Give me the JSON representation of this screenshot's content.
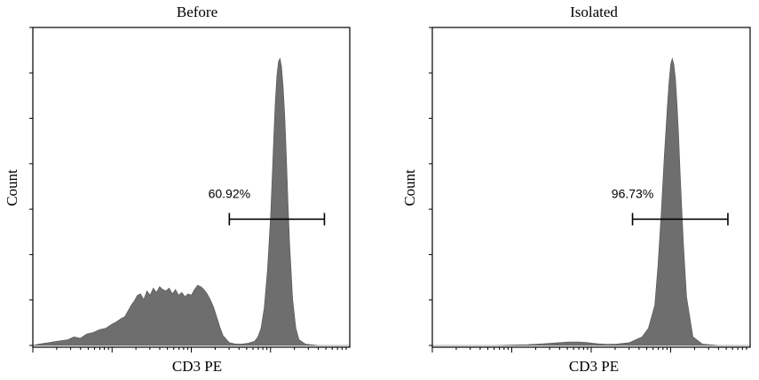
{
  "chart_data": [
    {
      "type": "area",
      "title": "Before",
      "xlabel": "CD3 PE",
      "ylabel": "Count",
      "fill_color": "#6e6e6e",
      "x_scale": "log (flow cytometry)",
      "xlim": [
        0,
        1
      ],
      "ylim": [
        0,
        1
      ],
      "grid": false,
      "x": [
        0.0,
        0.02,
        0.05,
        0.08,
        0.11,
        0.13,
        0.15,
        0.17,
        0.19,
        0.21,
        0.23,
        0.25,
        0.26,
        0.28,
        0.29,
        0.3,
        0.31,
        0.32,
        0.33,
        0.34,
        0.35,
        0.36,
        0.37,
        0.38,
        0.39,
        0.4,
        0.41,
        0.42,
        0.43,
        0.44,
        0.45,
        0.46,
        0.47,
        0.48,
        0.49,
        0.5,
        0.51,
        0.52,
        0.53,
        0.54,
        0.55,
        0.56,
        0.57,
        0.58,
        0.59,
        0.6,
        0.62,
        0.64,
        0.66,
        0.68,
        0.7,
        0.71,
        0.72,
        0.73,
        0.74,
        0.75,
        0.755,
        0.76,
        0.765,
        0.77,
        0.775,
        0.78,
        0.785,
        0.79,
        0.795,
        0.8,
        0.805,
        0.81,
        0.82,
        0.83,
        0.84,
        0.86,
        0.9,
        0.95,
        1.0
      ],
      "y": [
        0.0,
        0.005,
        0.01,
        0.015,
        0.02,
        0.03,
        0.025,
        0.04,
        0.045,
        0.055,
        0.06,
        0.075,
        0.08,
        0.095,
        0.1,
        0.12,
        0.14,
        0.155,
        0.175,
        0.18,
        0.16,
        0.19,
        0.175,
        0.2,
        0.185,
        0.205,
        0.195,
        0.19,
        0.2,
        0.18,
        0.195,
        0.175,
        0.185,
        0.17,
        0.18,
        0.175,
        0.195,
        0.21,
        0.205,
        0.195,
        0.18,
        0.16,
        0.135,
        0.1,
        0.065,
        0.035,
        0.01,
        0.005,
        0.005,
        0.008,
        0.015,
        0.03,
        0.06,
        0.13,
        0.26,
        0.45,
        0.58,
        0.72,
        0.85,
        0.94,
        0.99,
        1.0,
        0.97,
        0.9,
        0.8,
        0.66,
        0.5,
        0.36,
        0.16,
        0.06,
        0.02,
        0.005,
        0.0,
        0.0,
        0.0
      ],
      "gate": {
        "label": "60.92%",
        "x_start": 0.62,
        "x_end": 0.92,
        "y": 0.44
      }
    },
    {
      "type": "area",
      "title": "Isolated",
      "xlabel": "CD3 PE",
      "ylabel": "Count",
      "fill_color": "#6e6e6e",
      "x_scale": "log (flow cytometry)",
      "xlim": [
        0,
        1
      ],
      "ylim": [
        0,
        1
      ],
      "grid": false,
      "x": [
        0.0,
        0.1,
        0.2,
        0.3,
        0.35,
        0.4,
        0.43,
        0.46,
        0.49,
        0.52,
        0.55,
        0.58,
        0.62,
        0.66,
        0.68,
        0.7,
        0.71,
        0.72,
        0.73,
        0.74,
        0.745,
        0.75,
        0.755,
        0.76,
        0.765,
        0.77,
        0.775,
        0.78,
        0.79,
        0.8,
        0.82,
        0.85,
        0.9,
        0.95,
        1.0
      ],
      "y": [
        0.0,
        0.0,
        0.0,
        0.003,
        0.006,
        0.01,
        0.012,
        0.012,
        0.01,
        0.006,
        0.004,
        0.005,
        0.01,
        0.03,
        0.06,
        0.14,
        0.28,
        0.46,
        0.66,
        0.84,
        0.92,
        0.98,
        1.0,
        0.98,
        0.93,
        0.84,
        0.73,
        0.6,
        0.36,
        0.17,
        0.03,
        0.005,
        0.0,
        0.0,
        0.0
      ],
      "gate": {
        "label": "96.73%",
        "x_start": 0.63,
        "x_end": 0.93,
        "y": 0.44
      }
    }
  ]
}
